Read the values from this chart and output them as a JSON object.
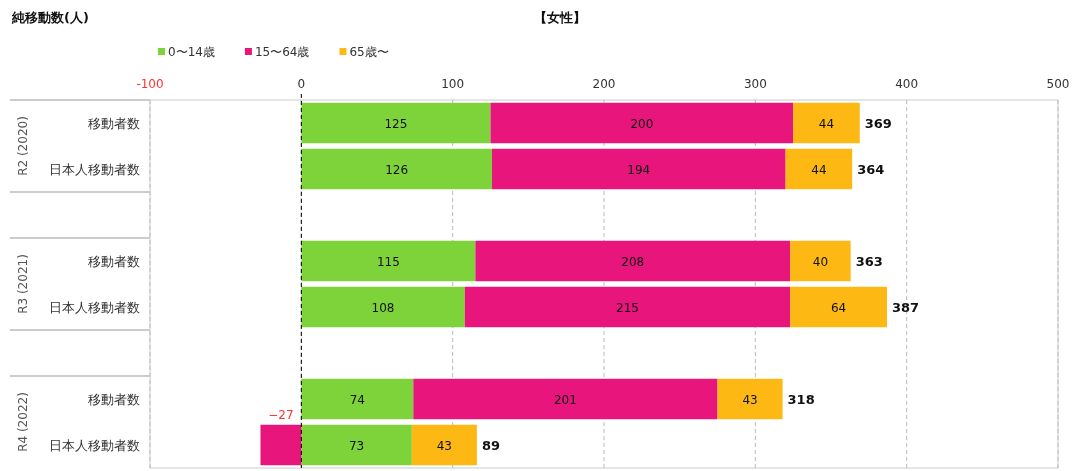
{
  "chart_data": {
    "type": "bar",
    "orientation": "horizontal",
    "stacked": true,
    "title": "【女性】",
    "xlabel": "純移動数(人)",
    "categories": [
      "移動者数",
      "日本人移動者数",
      null,
      "移動者数",
      "日本人移動者数",
      null,
      "移動者数",
      "日本人移動者数"
    ],
    "annotations": [
      "R2 (2020)",
      "R3 (2021)",
      "R4 (2022)"
    ],
    "series": [
      {
        "name": "0〜14歳",
        "color": "#7ed23a",
        "values": [
          125,
          126,
          null,
          115,
          108,
          null,
          74,
          73
        ]
      },
      {
        "name": "15〜64歳",
        "color": "#e8157c",
        "values": [
          200,
          194,
          null,
          208,
          215,
          null,
          201,
          -27
        ]
      },
      {
        "name": "65歳〜",
        "color": "#fdb813",
        "values": [
          44,
          44,
          null,
          40,
          64,
          null,
          43,
          43
        ]
      }
    ],
    "totals": [
      "369",
      "364",
      null,
      "363",
      "387",
      null,
      "318",
      "89"
    ],
    "data_labels": true,
    "xlim": [
      -100,
      500
    ],
    "xticks": [
      -100,
      0,
      100,
      200,
      300,
      400,
      500
    ],
    "grid": "x",
    "ref_lines": [
      {
        "axis": "x",
        "value": 0,
        "color": "#000000",
        "line_style": "dashed"
      }
    ],
    "legend": "top left"
  }
}
